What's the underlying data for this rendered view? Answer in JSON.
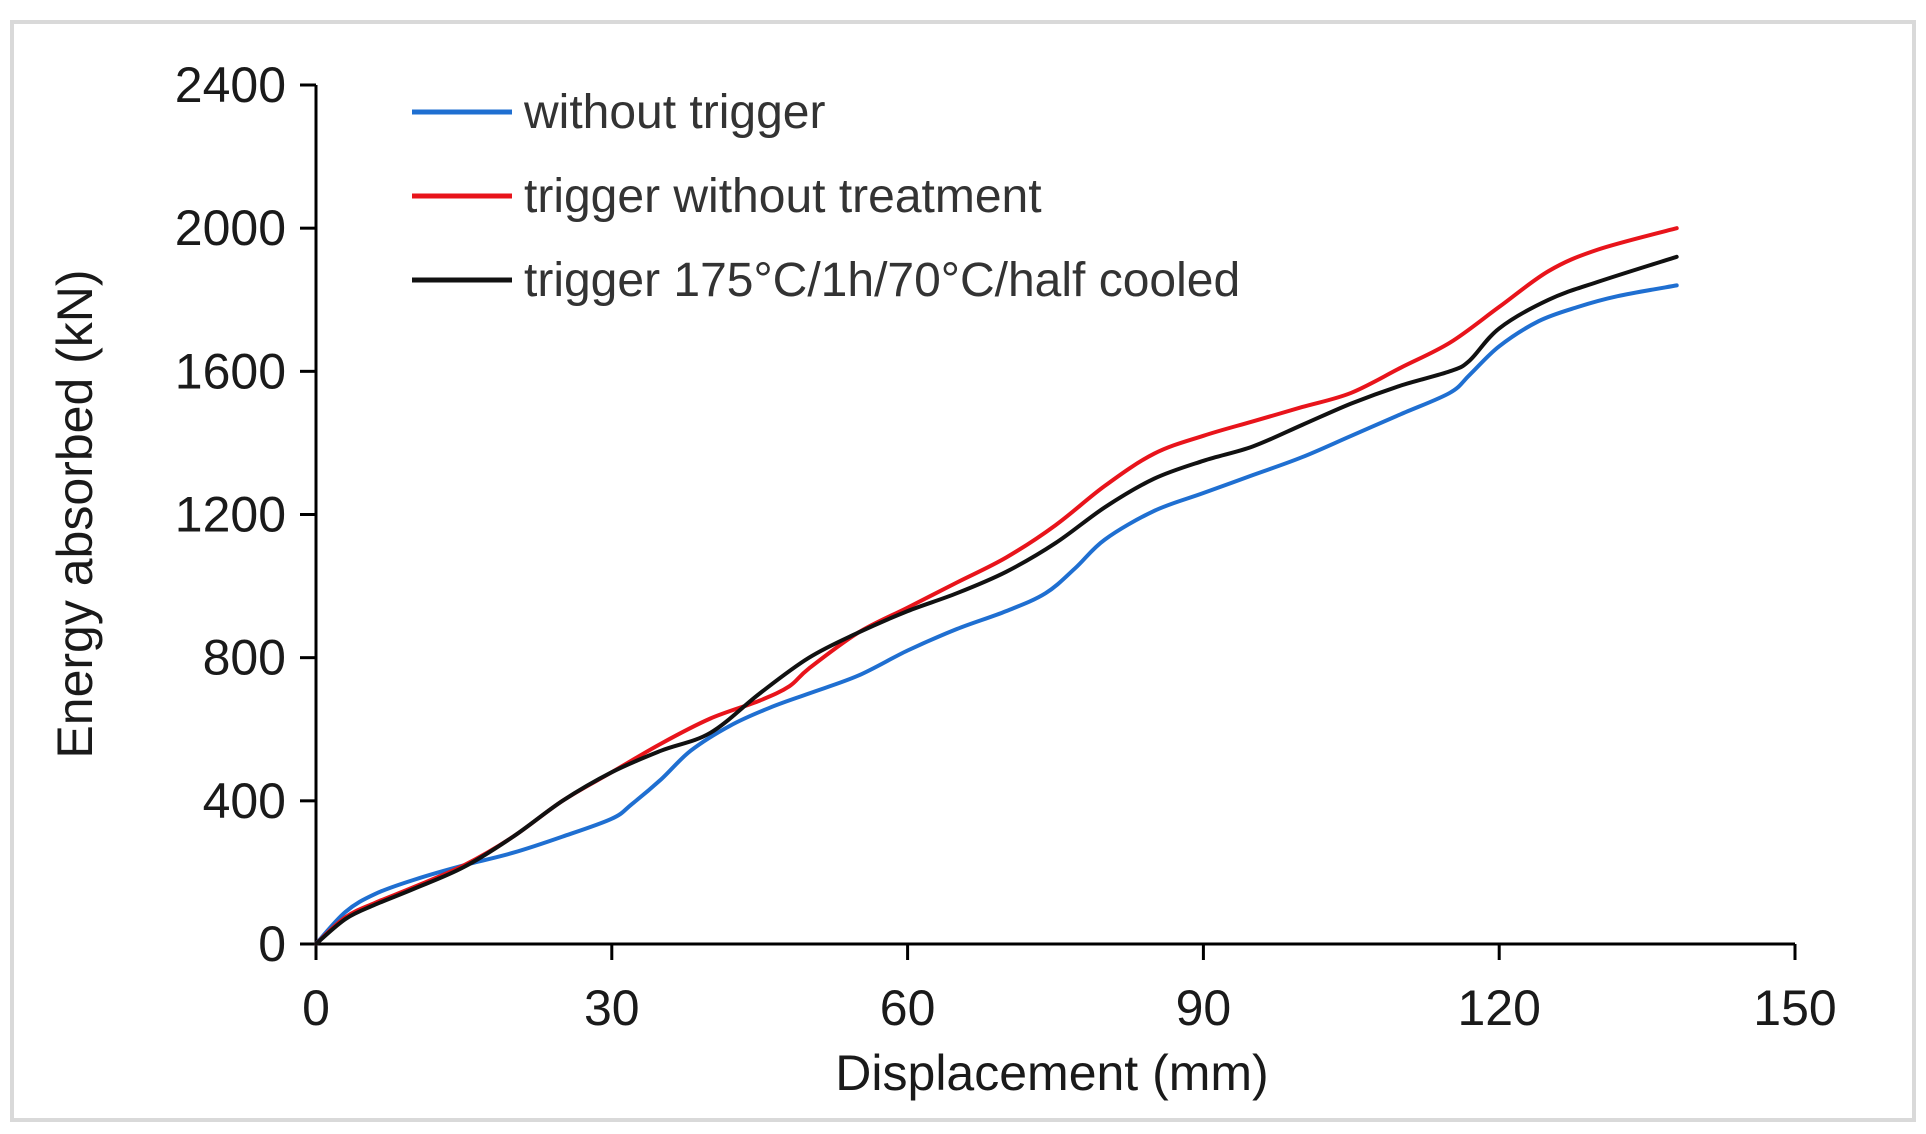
{
  "chart_data": {
    "type": "line",
    "title": "",
    "xlabel": "Displacement (mm)",
    "ylabel": "Energy absorbed (kN)",
    "xlim": [
      0,
      150
    ],
    "ylim": [
      0,
      2400
    ],
    "xticks": [
      0,
      30,
      60,
      90,
      120,
      150
    ],
    "yticks": [
      0,
      400,
      800,
      1200,
      1600,
      2000,
      2400
    ],
    "grid": false,
    "legend_position": "top-left",
    "series": [
      {
        "name": "without trigger",
        "color": "#1f6fd1",
        "points": [
          [
            0,
            0
          ],
          [
            3,
            90
          ],
          [
            6,
            140
          ],
          [
            10,
            180
          ],
          [
            15,
            220
          ],
          [
            20,
            255
          ],
          [
            25,
            300
          ],
          [
            30,
            350
          ],
          [
            32,
            390
          ],
          [
            35,
            460
          ],
          [
            38,
            540
          ],
          [
            42,
            610
          ],
          [
            46,
            660
          ],
          [
            50,
            700
          ],
          [
            55,
            750
          ],
          [
            60,
            820
          ],
          [
            65,
            880
          ],
          [
            70,
            930
          ],
          [
            74,
            980
          ],
          [
            77,
            1050
          ],
          [
            80,
            1130
          ],
          [
            85,
            1210
          ],
          [
            90,
            1260
          ],
          [
            95,
            1310
          ],
          [
            100,
            1360
          ],
          [
            105,
            1420
          ],
          [
            110,
            1480
          ],
          [
            115,
            1540
          ],
          [
            117,
            1590
          ],
          [
            120,
            1670
          ],
          [
            124,
            1740
          ],
          [
            128,
            1780
          ],
          [
            132,
            1810
          ],
          [
            138,
            1840
          ]
        ]
      },
      {
        "name": "trigger without treatment",
        "color": "#e8141b",
        "points": [
          [
            0,
            0
          ],
          [
            3,
            75
          ],
          [
            6,
            115
          ],
          [
            10,
            160
          ],
          [
            15,
            220
          ],
          [
            20,
            300
          ],
          [
            25,
            400
          ],
          [
            30,
            480
          ],
          [
            35,
            560
          ],
          [
            40,
            630
          ],
          [
            45,
            680
          ],
          [
            48,
            720
          ],
          [
            50,
            770
          ],
          [
            55,
            870
          ],
          [
            60,
            940
          ],
          [
            65,
            1010
          ],
          [
            70,
            1080
          ],
          [
            75,
            1170
          ],
          [
            80,
            1280
          ],
          [
            85,
            1370
          ],
          [
            90,
            1420
          ],
          [
            95,
            1460
          ],
          [
            100,
            1500
          ],
          [
            105,
            1540
          ],
          [
            110,
            1610
          ],
          [
            115,
            1680
          ],
          [
            120,
            1780
          ],
          [
            125,
            1880
          ],
          [
            130,
            1940
          ],
          [
            138,
            2000
          ]
        ]
      },
      {
        "name": "trigger 175°C/1h/70°C/half cooled",
        "color": "#111111",
        "points": [
          [
            0,
            0
          ],
          [
            3,
            70
          ],
          [
            6,
            110
          ],
          [
            10,
            155
          ],
          [
            15,
            215
          ],
          [
            20,
            300
          ],
          [
            25,
            400
          ],
          [
            30,
            480
          ],
          [
            35,
            540
          ],
          [
            40,
            590
          ],
          [
            45,
            700
          ],
          [
            50,
            800
          ],
          [
            55,
            870
          ],
          [
            60,
            930
          ],
          [
            65,
            980
          ],
          [
            70,
            1040
          ],
          [
            75,
            1120
          ],
          [
            80,
            1220
          ],
          [
            85,
            1300
          ],
          [
            90,
            1350
          ],
          [
            95,
            1390
          ],
          [
            100,
            1450
          ],
          [
            105,
            1510
          ],
          [
            110,
            1560
          ],
          [
            115,
            1600
          ],
          [
            117,
            1630
          ],
          [
            120,
            1720
          ],
          [
            125,
            1800
          ],
          [
            130,
            1850
          ],
          [
            138,
            1920
          ]
        ]
      }
    ]
  }
}
